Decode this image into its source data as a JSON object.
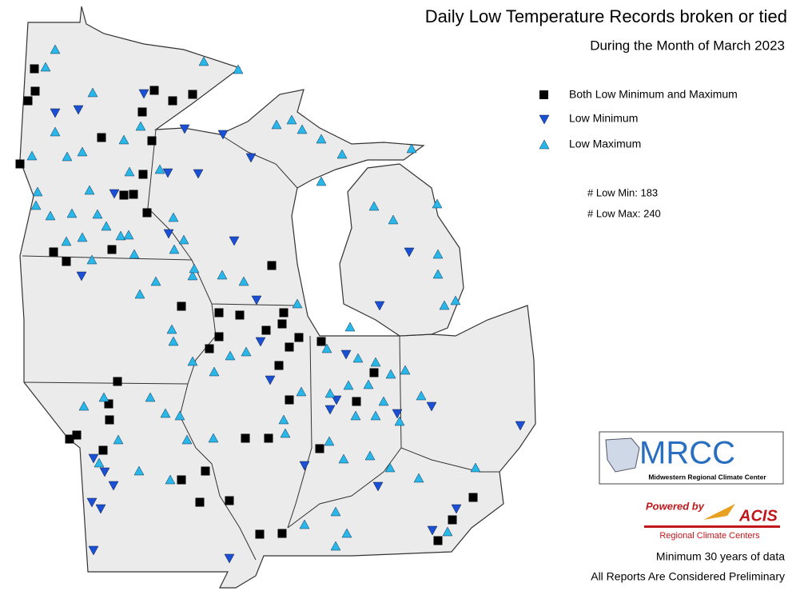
{
  "title": "Daily Low Temperature Records broken or tied",
  "subtitle": "During the Month of March 2023",
  "legend": {
    "items": [
      "Both Low Minimum and Maximum",
      "Low Minimum",
      "Low Maximum"
    ]
  },
  "counts": [
    "# Low Min: 183",
    "# Low Max: 240"
  ],
  "logo": {
    "mrcc": "MRCC",
    "mrcc_name": "Midwestern Regional Climate Center",
    "powered_by": "Powered by",
    "acis": "ACIS",
    "rcc": "Regional Climate Centers"
  },
  "notes": [
    "Minimum 30 years of data",
    "All Reports Are Considered Preliminary"
  ]
}
